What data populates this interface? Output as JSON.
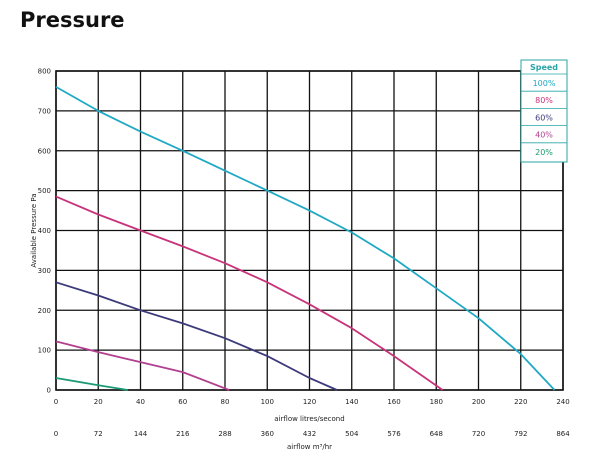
{
  "page": {
    "title": "Pressure"
  },
  "chart_data": {
    "type": "line",
    "title": "Pressure",
    "ylabel": "Available Pressure Pa",
    "xlabel": "airflow litres/second",
    "xlabel2": "airflow m³/hr",
    "xlim": [
      0,
      240
    ],
    "ylim": [
      0,
      800
    ],
    "x_ticks": [
      0,
      20,
      40,
      60,
      80,
      100,
      120,
      140,
      160,
      180,
      200,
      220,
      240
    ],
    "x2_ticks": [
      "0",
      "72",
      "144",
      "216",
      "288",
      "360",
      "432",
      "504",
      "576",
      "648",
      "720",
      "792",
      "864"
    ],
    "y_ticks": [
      0,
      100,
      200,
      300,
      400,
      500,
      600,
      700,
      800
    ],
    "grid": true,
    "legend": {
      "title": "Speed",
      "placement": "top-right"
    },
    "series": [
      {
        "name": "100%",
        "color": "#1fa9c4",
        "x": [
          0,
          20,
          40,
          60,
          80,
          100,
          120,
          140,
          160,
          180,
          200,
          220,
          236
        ],
        "y": [
          760,
          700,
          648,
          600,
          550,
          500,
          450,
          395,
          330,
          255,
          180,
          90,
          0
        ]
      },
      {
        "name": "80%",
        "color": "#c8337a",
        "x": [
          0,
          20,
          40,
          60,
          80,
          100,
          120,
          140,
          160,
          183
        ],
        "y": [
          485,
          440,
          400,
          360,
          318,
          270,
          215,
          155,
          85,
          0
        ]
      },
      {
        "name": "60%",
        "color": "#3c3a7a",
        "x": [
          0,
          20,
          40,
          60,
          80,
          100,
          120,
          133
        ],
        "y": [
          270,
          237,
          200,
          167,
          130,
          85,
          30,
          0
        ]
      },
      {
        "name": "40%",
        "color": "#b1408f",
        "x": [
          0,
          20,
          40,
          60,
          82
        ],
        "y": [
          122,
          95,
          70,
          45,
          0
        ]
      },
      {
        "name": "20%",
        "color": "#1c9a76",
        "x": [
          0,
          20,
          34
        ],
        "y": [
          30,
          12,
          0
        ]
      }
    ]
  }
}
